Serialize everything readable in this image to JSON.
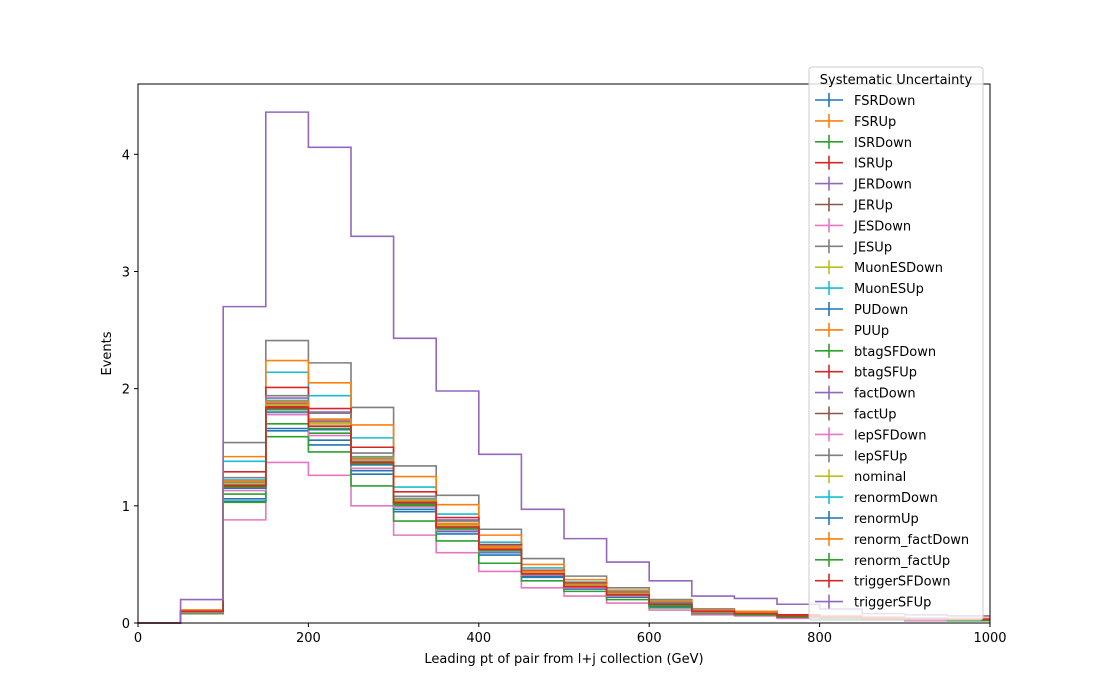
{
  "chart_data": {
    "type": "line",
    "title": "",
    "xlabel": "Leading pt of pair from l+j collection (GeV)",
    "ylabel": "Events",
    "xlim": [
      0,
      1000
    ],
    "ylim": [
      0,
      4.6
    ],
    "xticks": [
      "0",
      "200",
      "400",
      "600",
      "800",
      "1000"
    ],
    "yticks": [
      "0",
      "1",
      "2",
      "3",
      "4"
    ],
    "grid": false,
    "legend_title": "Systematic Uncertainty",
    "legend_position": "top-right",
    "bin_edges": [
      0,
      50,
      100,
      150,
      200,
      250,
      300,
      350,
      400,
      450,
      500,
      550,
      600,
      650,
      700,
      750,
      800,
      850,
      900,
      950,
      1000
    ],
    "series": [
      {
        "name": "FSRDown",
        "color": "#1f77b4",
        "values": [
          0,
          0.09,
          1.06,
          1.66,
          1.56,
          1.3,
          0.97,
          0.78,
          0.6,
          0.4,
          0.3,
          0.23,
          0.15,
          0.09,
          0.08,
          0.06,
          0.05,
          0.04,
          0.03,
          0.03
        ]
      },
      {
        "name": "FSRUp",
        "color": "#ff7f0e",
        "values": [
          0,
          0.1,
          1.2,
          1.88,
          1.73,
          1.4,
          1.05,
          0.84,
          0.65,
          0.43,
          0.32,
          0.25,
          0.16,
          0.1,
          0.09,
          0.06,
          0.05,
          0.04,
          0.04,
          0.03
        ]
      },
      {
        "name": "ISRDown",
        "color": "#2ca02c",
        "values": [
          0,
          0.09,
          1.1,
          1.7,
          1.62,
          1.35,
          1.0,
          0.8,
          0.62,
          0.41,
          0.31,
          0.24,
          0.15,
          0.09,
          0.08,
          0.06,
          0.05,
          0.04,
          0.03,
          0.03
        ]
      },
      {
        "name": "ISRUp",
        "color": "#d62728",
        "values": [
          0,
          0.1,
          1.18,
          1.85,
          1.7,
          1.38,
          1.03,
          0.83,
          0.64,
          0.42,
          0.32,
          0.25,
          0.16,
          0.1,
          0.08,
          0.06,
          0.05,
          0.04,
          0.04,
          0.03
        ]
      },
      {
        "name": "JERDown",
        "color": "#9467bd",
        "values": [
          0,
          0.1,
          1.22,
          1.92,
          1.8,
          1.4,
          1.08,
          0.88,
          0.66,
          0.44,
          0.33,
          0.26,
          0.16,
          0.1,
          0.09,
          0.06,
          0.05,
          0.04,
          0.04,
          0.03
        ]
      },
      {
        "name": "JERUp",
        "color": "#8c564b",
        "values": [
          0,
          0.1,
          1.16,
          1.78,
          1.68,
          1.36,
          1.02,
          0.82,
          0.63,
          0.42,
          0.31,
          0.24,
          0.16,
          0.1,
          0.08,
          0.06,
          0.05,
          0.04,
          0.03,
          0.03
        ]
      },
      {
        "name": "JESDown",
        "color": "#e377c2",
        "values": [
          0,
          0.08,
          0.88,
          1.37,
          1.26,
          1.0,
          0.75,
          0.6,
          0.44,
          0.3,
          0.23,
          0.17,
          0.11,
          0.07,
          0.06,
          0.04,
          0.04,
          0.03,
          0.02,
          0.02
        ]
      },
      {
        "name": "JESUp",
        "color": "#7f7f7f",
        "values": [
          0,
          0.11,
          1.54,
          2.41,
          2.22,
          1.84,
          1.34,
          1.09,
          0.8,
          0.55,
          0.4,
          0.3,
          0.2,
          0.12,
          0.1,
          0.07,
          0.06,
          0.05,
          0.04,
          0.04
        ]
      },
      {
        "name": "MuonESDown",
        "color": "#bcbd22",
        "values": [
          0,
          0.1,
          1.19,
          1.86,
          1.71,
          1.39,
          1.04,
          0.83,
          0.64,
          0.43,
          0.32,
          0.25,
          0.16,
          0.1,
          0.08,
          0.06,
          0.05,
          0.04,
          0.04,
          0.03
        ]
      },
      {
        "name": "MuonESUp",
        "color": "#17becf",
        "values": [
          0,
          0.1,
          1.38,
          2.14,
          1.94,
          1.58,
          1.16,
          0.93,
          0.69,
          0.47,
          0.35,
          0.27,
          0.18,
          0.11,
          0.09,
          0.07,
          0.06,
          0.05,
          0.04,
          0.03
        ]
      },
      {
        "name": "PUDown",
        "color": "#1f77b4",
        "values": [
          0,
          0.09,
          1.04,
          1.64,
          1.52,
          1.27,
          0.95,
          0.76,
          0.58,
          0.39,
          0.29,
          0.22,
          0.14,
          0.09,
          0.07,
          0.06,
          0.05,
          0.04,
          0.03,
          0.03
        ]
      },
      {
        "name": "PUUp",
        "color": "#ff7f0e",
        "values": [
          0,
          0.11,
          1.42,
          2.24,
          2.05,
          1.69,
          1.25,
          1.01,
          0.75,
          0.5,
          0.37,
          0.28,
          0.19,
          0.11,
          0.1,
          0.07,
          0.06,
          0.05,
          0.04,
          0.04
        ]
      },
      {
        "name": "btagSFDown",
        "color": "#2ca02c",
        "values": [
          0,
          0.08,
          1.03,
          1.59,
          1.46,
          1.17,
          0.87,
          0.7,
          0.51,
          0.36,
          0.27,
          0.2,
          0.13,
          0.08,
          0.07,
          0.05,
          0.04,
          0.03,
          0.03,
          0.02
        ]
      },
      {
        "name": "btagSFUp",
        "color": "#d62728",
        "values": [
          0,
          0.1,
          1.29,
          2.01,
          1.83,
          1.5,
          1.12,
          0.9,
          0.67,
          0.45,
          0.34,
          0.26,
          0.17,
          0.1,
          0.09,
          0.07,
          0.05,
          0.04,
          0.04,
          0.03
        ]
      },
      {
        "name": "factDown",
        "color": "#9467bd",
        "values": [
          0,
          0.1,
          1.2,
          1.87,
          1.72,
          1.38,
          1.04,
          0.83,
          0.64,
          0.43,
          0.32,
          0.25,
          0.16,
          0.1,
          0.08,
          0.06,
          0.05,
          0.04,
          0.04,
          0.03
        ]
      },
      {
        "name": "factUp",
        "color": "#8c564b",
        "values": [
          0,
          0.1,
          1.18,
          1.83,
          1.66,
          1.36,
          1.02,
          0.82,
          0.63,
          0.42,
          0.31,
          0.24,
          0.16,
          0.1,
          0.08,
          0.06,
          0.05,
          0.04,
          0.03,
          0.03
        ]
      },
      {
        "name": "lepSFDown",
        "color": "#e377c2",
        "values": [
          0,
          0.09,
          1.13,
          1.78,
          1.6,
          1.32,
          0.99,
          0.79,
          0.61,
          0.41,
          0.3,
          0.23,
          0.15,
          0.09,
          0.08,
          0.06,
          0.05,
          0.04,
          0.03,
          0.03
        ]
      },
      {
        "name": "lepSFUp",
        "color": "#7f7f7f",
        "values": [
          0,
          0.1,
          1.24,
          1.94,
          1.79,
          1.45,
          1.08,
          0.87,
          0.66,
          0.44,
          0.33,
          0.26,
          0.17,
          0.1,
          0.09,
          0.06,
          0.05,
          0.04,
          0.04,
          0.03
        ]
      },
      {
        "name": "nominal",
        "color": "#bcbd22",
        "values": [
          0,
          0.1,
          1.19,
          1.86,
          1.7,
          1.39,
          1.04,
          0.83,
          0.64,
          0.43,
          0.32,
          0.25,
          0.16,
          0.1,
          0.08,
          0.06,
          0.05,
          0.04,
          0.04,
          0.03
        ]
      },
      {
        "name": "renormDown",
        "color": "#17becf",
        "values": [
          0,
          0.1,
          1.22,
          1.9,
          1.74,
          1.42,
          1.06,
          0.85,
          0.65,
          0.44,
          0.33,
          0.25,
          0.16,
          0.1,
          0.09,
          0.06,
          0.05,
          0.04,
          0.04,
          0.03
        ]
      },
      {
        "name": "renormUp",
        "color": "#1f77b4",
        "values": [
          0,
          0.1,
          1.15,
          1.8,
          1.65,
          1.35,
          1.01,
          0.81,
          0.62,
          0.42,
          0.31,
          0.24,
          0.15,
          0.1,
          0.08,
          0.06,
          0.05,
          0.04,
          0.03,
          0.03
        ]
      },
      {
        "name": "renorm_factDown",
        "color": "#ff7f0e",
        "values": [
          0,
          0.1,
          1.21,
          1.89,
          1.74,
          1.41,
          1.05,
          0.85,
          0.65,
          0.44,
          0.33,
          0.25,
          0.16,
          0.1,
          0.09,
          0.06,
          0.05,
          0.04,
          0.04,
          0.03
        ]
      },
      {
        "name": "renorm_factUp",
        "color": "#2ca02c",
        "values": [
          0,
          0.1,
          1.16,
          1.82,
          1.66,
          1.36,
          1.01,
          0.81,
          0.62,
          0.42,
          0.31,
          0.24,
          0.15,
          0.1,
          0.08,
          0.06,
          0.05,
          0.04,
          0.03,
          0.03
        ]
      },
      {
        "name": "triggerSFDown",
        "color": "#d62728",
        "values": [
          0,
          0.1,
          1.17,
          1.84,
          1.68,
          1.37,
          1.03,
          0.82,
          0.63,
          0.42,
          0.31,
          0.24,
          0.16,
          0.1,
          0.08,
          0.06,
          0.05,
          0.04,
          0.04,
          0.03
        ]
      },
      {
        "name": "triggerSFUp",
        "color": "#9467bd",
        "values": [
          0,
          0.2,
          2.7,
          4.36,
          4.06,
          3.3,
          2.43,
          1.98,
          1.44,
          0.97,
          0.72,
          0.52,
          0.36,
          0.23,
          0.21,
          0.16,
          0.12,
          0.08,
          0.07,
          0.06
        ]
      }
    ]
  }
}
